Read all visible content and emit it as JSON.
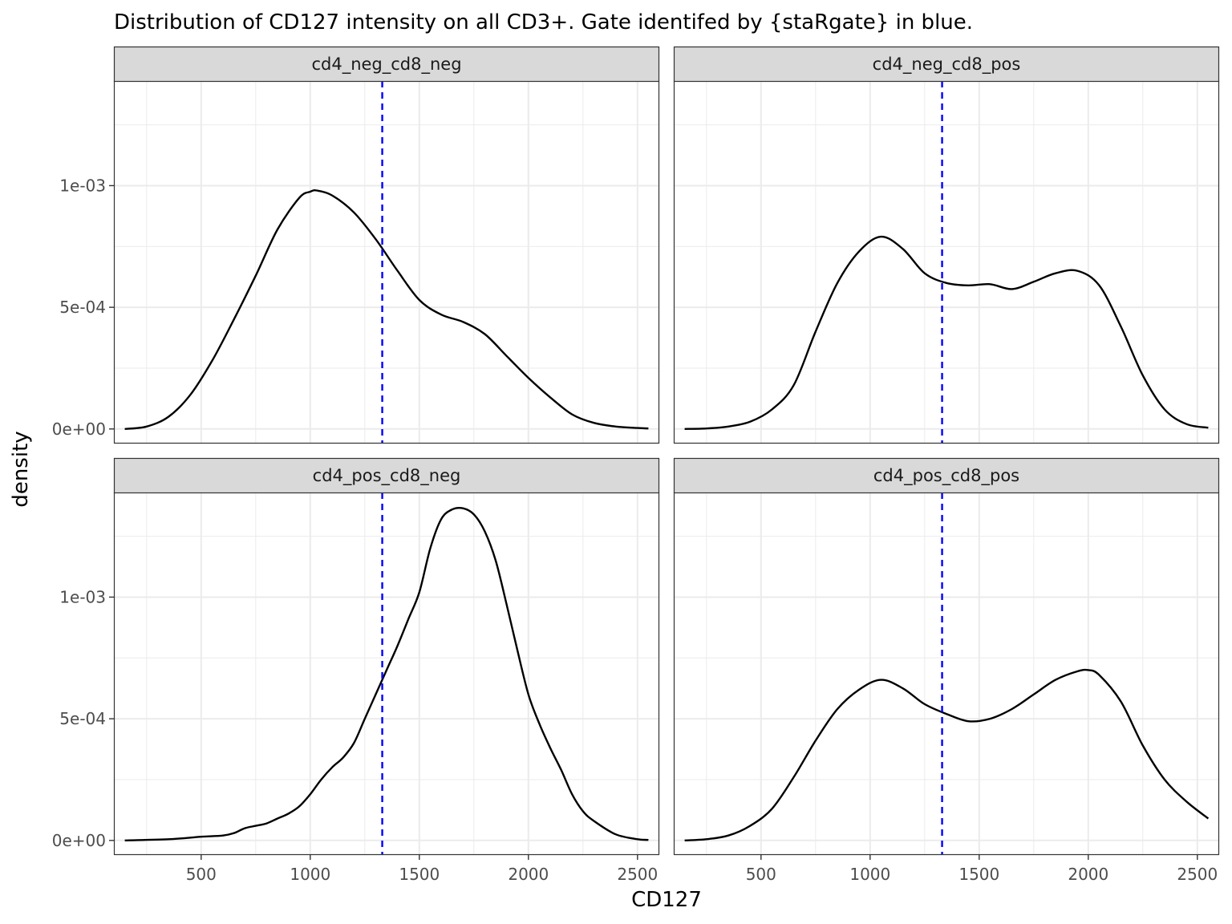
{
  "chart_data": {
    "type": "line",
    "title": "Distribution of CD127 intensity on all CD3+. Gate identifed by {staRgate} in blue.",
    "xlabel": "CD127",
    "ylabel": "density",
    "xlim": [
      100,
      2600
    ],
    "ylim": [
      -6e-05,
      0.00143
    ],
    "x_ticks": [
      500,
      1000,
      1500,
      2000,
      2500
    ],
    "x_tick_labels": [
      "500",
      "1000",
      "1500",
      "2000",
      "2500"
    ],
    "y_ticks": [
      0,
      0.0005,
      0.001
    ],
    "y_tick_labels": [
      "0e+00",
      "5e-04",
      "1e-03"
    ],
    "grid": true,
    "gate_x": 1330,
    "gate_color": "#0000ff",
    "line_color": "#000000",
    "panels": [
      {
        "facet": "cd4_neg_cd8_neg",
        "series": [
          {
            "x": [
              150,
              250,
              350,
              450,
              550,
              650,
              750,
              850,
              950,
              1000,
              1030,
              1100,
              1200,
              1300,
              1400,
              1500,
              1600,
              1700,
              1800,
              1900,
              2000,
              2100,
              2200,
              2300,
              2400,
              2500,
              2550
            ],
            "y": [
              0.0,
              1e-05,
              5e-05,
              0.00014,
              0.00028,
              0.00045,
              0.00063,
              0.00082,
              0.00095,
              0.000975,
              0.00098,
              0.00096,
              0.00089,
              0.00078,
              0.00065,
              0.00053,
              0.00047,
              0.00044,
              0.00039,
              0.0003,
              0.00021,
              0.00013,
              6e-05,
              2.5e-05,
              1e-05,
              4e-06,
              2e-06
            ]
          }
        ]
      },
      {
        "facet": "cd4_neg_cd8_pos",
        "series": [
          {
            "x": [
              150,
              250,
              350,
              450,
              550,
              650,
              750,
              850,
              950,
              1050,
              1150,
              1250,
              1350,
              1450,
              1550,
              1650,
              1750,
              1850,
              1950,
              2050,
              2150,
              2250,
              2350,
              2450,
              2550
            ],
            "y": [
              0.0,
              2e-06,
              1e-05,
              3e-05,
              8e-05,
              0.00018,
              0.0004,
              0.0006,
              0.00073,
              0.00079,
              0.00074,
              0.00064,
              0.0006,
              0.00059,
              0.000595,
              0.000575,
              0.000605,
              0.00064,
              0.00065,
              0.00059,
              0.00042,
              0.00022,
              8e-05,
              2e-05,
              5e-06
            ]
          }
        ]
      },
      {
        "facet": "cd4_pos_cd8_neg",
        "series": [
          {
            "x": [
              150,
              350,
              500,
              600,
              650,
              700,
              750,
              800,
              850,
              900,
              950,
              1000,
              1050,
              1100,
              1150,
              1200,
              1250,
              1300,
              1350,
              1400,
              1450,
              1500,
              1550,
              1600,
              1650,
              1700,
              1750,
              1800,
              1850,
              1900,
              1950,
              2000,
              2050,
              2100,
              2150,
              2200,
              2250,
              2300,
              2400,
              2500,
              2550
            ],
            "y": [
              0.0,
              5e-06,
              1.5e-05,
              2e-05,
              3e-05,
              5e-05,
              6e-05,
              7e-05,
              9e-05,
              0.00011,
              0.00014,
              0.00019,
              0.00025,
              0.0003,
              0.00034,
              0.0004,
              0.0005,
              0.0006,
              0.0007,
              0.0008,
              0.00091,
              0.00102,
              0.0012,
              0.00132,
              0.00136,
              0.001365,
              0.00134,
              0.00127,
              0.00115,
              0.00097,
              0.00078,
              0.0006,
              0.00048,
              0.00038,
              0.00029,
              0.00019,
              0.00012,
              8e-05,
              2.5e-05,
              5e-06,
              2e-06
            ]
          }
        ]
      },
      {
        "facet": "cd4_pos_cd8_pos",
        "series": [
          {
            "x": [
              150,
              250,
              350,
              450,
              550,
              650,
              750,
              850,
              950,
              1050,
              1150,
              1250,
              1350,
              1450,
              1550,
              1650,
              1750,
              1850,
              1950,
              2000,
              2050,
              2150,
              2250,
              2350,
              2450,
              2550
            ],
            "y": [
              0.0,
              5e-06,
              2e-05,
              6e-05,
              0.00013,
              0.00026,
              0.00041,
              0.00054,
              0.00062,
              0.00066,
              0.000625,
              0.00056,
              0.00052,
              0.00049,
              0.0005,
              0.00054,
              0.0006,
              0.00066,
              0.000695,
              0.0007,
              0.00068,
              0.00057,
              0.00039,
              0.00025,
              0.00016,
              9e-05
            ]
          }
        ]
      }
    ]
  }
}
